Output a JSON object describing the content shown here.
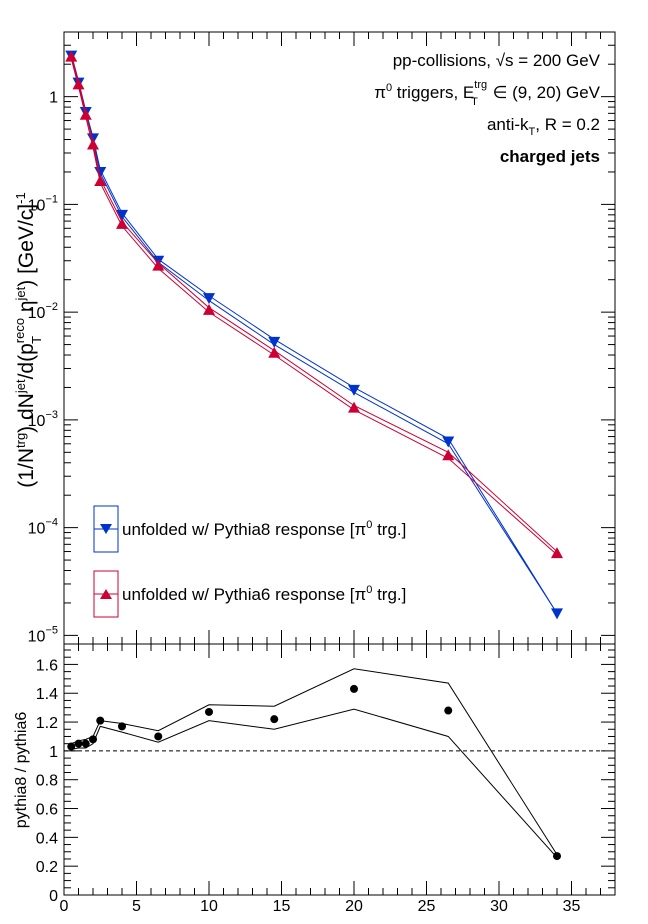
{
  "chart_data": [
    {
      "type": "line",
      "log_y": true,
      "ylim": [
        1e-05,
        4
      ],
      "xlim": [
        0,
        38
      ],
      "x_ticks": [
        0,
        5,
        10,
        15,
        20,
        25,
        30,
        35
      ],
      "y_ticks": [
        {
          "v": 1,
          "base": "1",
          "exp": ""
        },
        {
          "v": 0.1,
          "base": "10",
          "exp": "−1"
        },
        {
          "v": 0.01,
          "base": "10",
          "exp": "−2"
        },
        {
          "v": 0.001,
          "base": "10",
          "exp": "−3"
        },
        {
          "v": 0.0001,
          "base": "10",
          "exp": "−4"
        },
        {
          "v": 1e-05,
          "base": "10",
          "exp": "−5"
        }
      ],
      "ylabel": "(1/N^{trg}) dN^{jet}/d(p_{T}^{reco,ch} η^{jet}) [GeV/c]^{-1}",
      "annotations": {
        "line1": "pp-collisions, √s = 200 GeV",
        "line2": "π⁰ triggers, E_T^{trg} ∈ (9, 20) GeV",
        "line3": "anti-k_T, R = 0.2",
        "line4": "charged jets"
      },
      "legend_position": "bottom-left",
      "series": [
        {
          "name": "unfolded w/ Pythia8 response [π⁰ trg.]",
          "color": "#0033cc",
          "marker": "triangle-down",
          "x": [
            0.5,
            1.0,
            1.5,
            2.0,
            2.5,
            4.0,
            6.5,
            10.0,
            14.5,
            20.0,
            26.5,
            34.0
          ],
          "y": [
            2.4,
            1.35,
            0.72,
            0.41,
            0.2,
            0.08,
            0.03,
            0.0135,
            0.0053,
            0.0019,
            0.00063,
            1.6e-05
          ],
          "band_upper": [
            2.5,
            1.4,
            0.74,
            0.42,
            0.21,
            0.083,
            0.031,
            0.0142,
            0.0056,
            0.002,
            0.00067,
            1.6e-05
          ],
          "band_lower": [
            2.3,
            1.3,
            0.7,
            0.4,
            0.195,
            0.077,
            0.029,
            0.0128,
            0.005,
            0.0018,
            0.0006,
            1.6e-05
          ]
        },
        {
          "name": "unfolded w/ Pythia6 response [π⁰ trg.]",
          "color": "#cc0033",
          "marker": "triangle-up",
          "x": [
            0.5,
            1.0,
            1.5,
            2.0,
            2.5,
            4.0,
            6.5,
            10.0,
            14.5,
            20.0,
            26.5,
            34.0
          ],
          "y": [
            2.35,
            1.3,
            0.68,
            0.36,
            0.165,
            0.066,
            0.027,
            0.0105,
            0.0042,
            0.0013,
            0.00047,
            5.8e-05
          ],
          "band_upper": [
            2.45,
            1.36,
            0.71,
            0.38,
            0.172,
            0.069,
            0.0285,
            0.011,
            0.0044,
            0.00136,
            0.0005,
            6e-05
          ],
          "band_lower": [
            2.25,
            1.24,
            0.65,
            0.34,
            0.158,
            0.063,
            0.0255,
            0.01,
            0.004,
            0.00124,
            0.00044,
            5.6e-05
          ]
        }
      ]
    },
    {
      "type": "scatter",
      "xlim": [
        0,
        38
      ],
      "ylim": [
        0,
        1.7
      ],
      "x_ticks": [
        0,
        5,
        10,
        15,
        20,
        25,
        30,
        35
      ],
      "y_ticks": [
        0,
        0.2,
        0.4,
        0.6,
        0.8,
        1,
        1.2,
        1.4,
        1.6
      ],
      "ylabel": "pythia8 / pythia6",
      "reference_line": 1,
      "points": {
        "x": [
          0.5,
          1.0,
          1.5,
          2.0,
          2.5,
          4.0,
          6.5,
          10.0,
          14.5,
          20.0,
          26.5,
          34.0
        ],
        "y": [
          1.03,
          1.05,
          1.05,
          1.08,
          1.21,
          1.17,
          1.1,
          1.27,
          1.22,
          1.43,
          1.28,
          0.27
        ]
      },
      "band_upper": [
        1.05,
        1.07,
        1.08,
        1.1,
        1.21,
        1.19,
        1.14,
        1.32,
        1.31,
        1.57,
        1.47,
        0.28
      ],
      "band_lower": [
        1.01,
        1.02,
        1.02,
        1.05,
        1.17,
        1.13,
        1.06,
        1.21,
        1.15,
        1.29,
        1.1,
        0.26
      ]
    }
  ]
}
